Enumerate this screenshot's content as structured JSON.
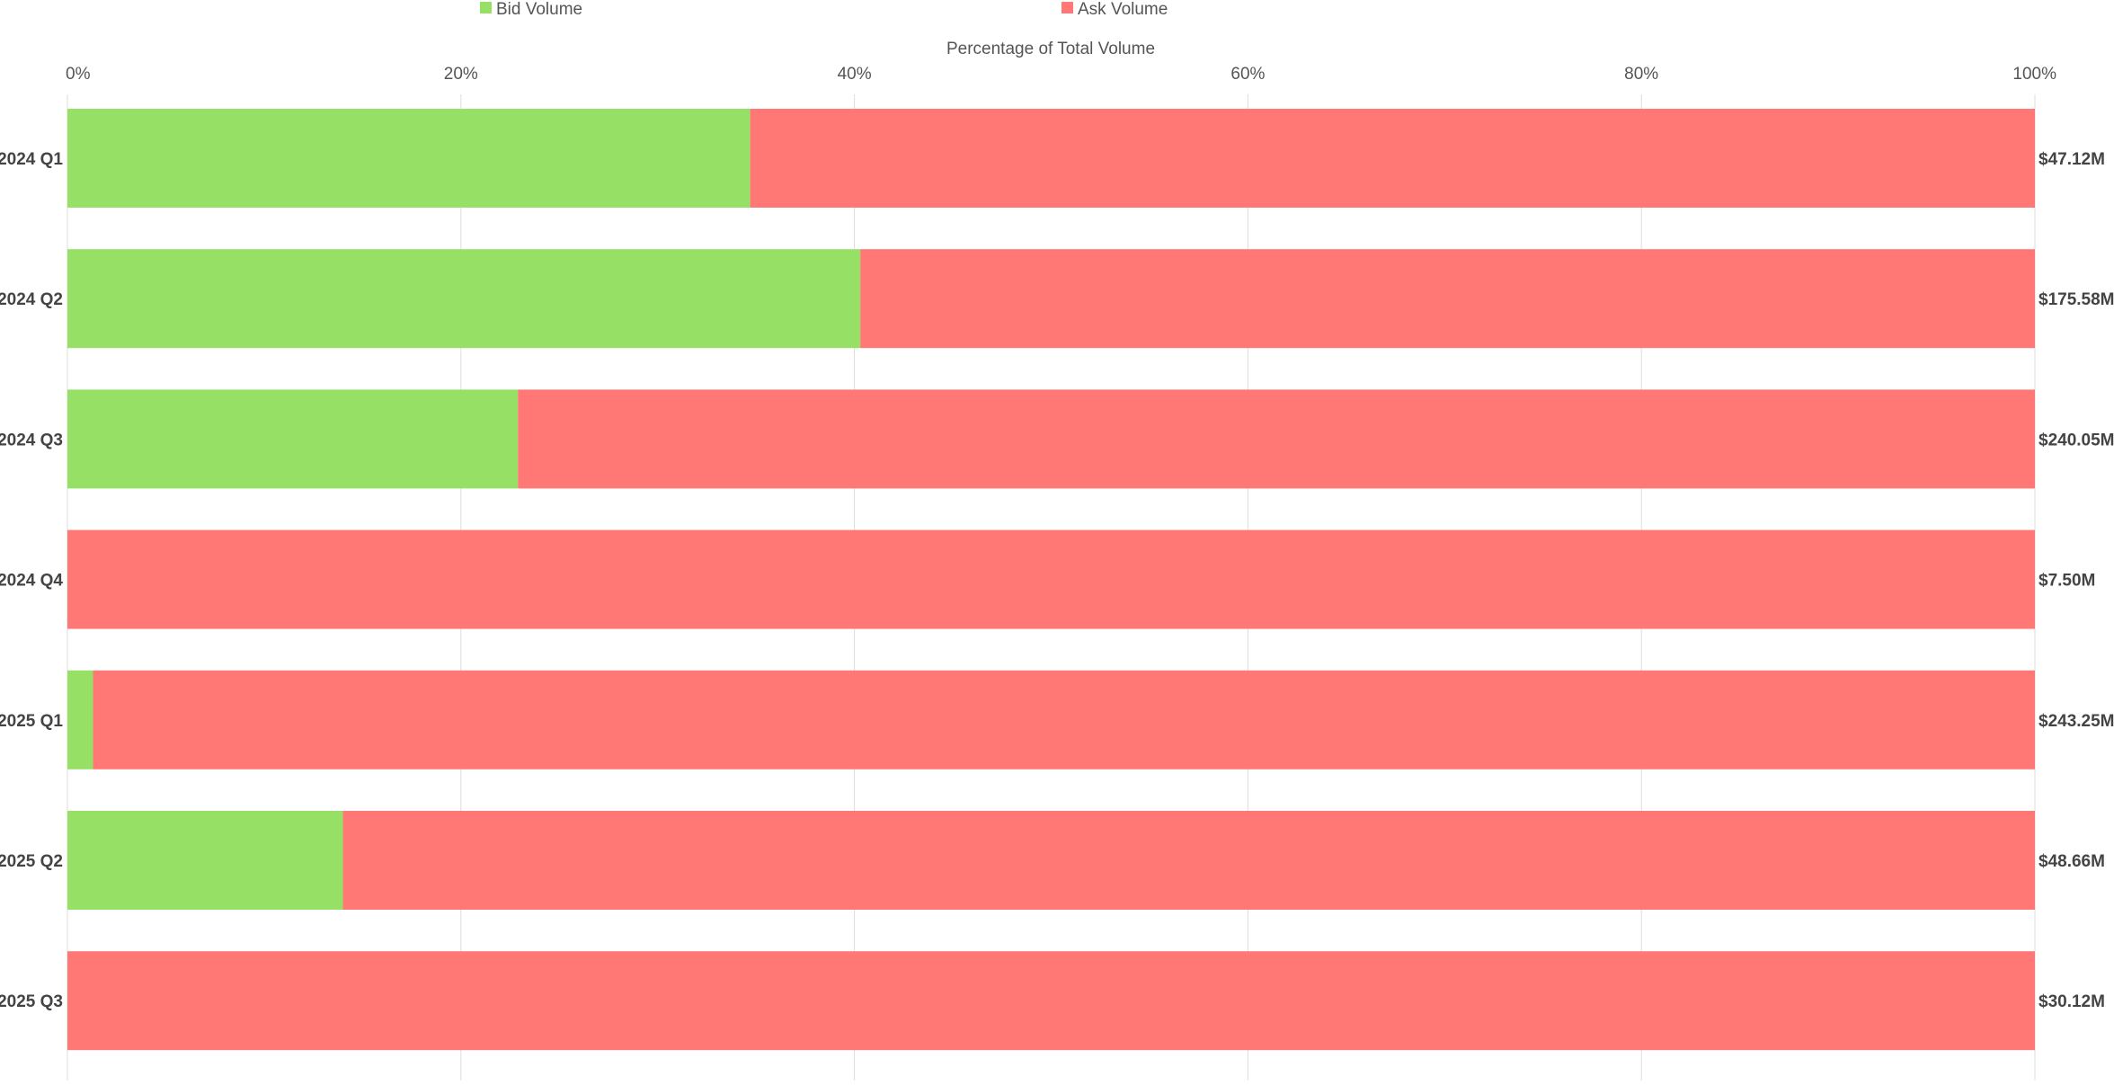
{
  "chart_data": {
    "type": "bar",
    "orientation": "horizontal",
    "stacked": true,
    "normalized": true,
    "title": "",
    "xlabel": "Percentage of Total Volume",
    "ylabel": "",
    "xlim": [
      0,
      100
    ],
    "x_ticks": [
      0,
      20,
      40,
      60,
      80,
      100
    ],
    "x_tick_labels": [
      "0%",
      "20%",
      "40%",
      "60%",
      "80%",
      "100%"
    ],
    "grid": true,
    "legend_position": "top",
    "categories": [
      "2024 Q1",
      "2024 Q2",
      "2024 Q3",
      "2024 Q4",
      "2025 Q1",
      "2025 Q2",
      "2025 Q3"
    ],
    "series": [
      {
        "name": "Bid Volume",
        "color": "#97e066",
        "values": [
          34.7,
          40.3,
          22.9,
          0.0,
          1.3,
          14.0,
          0.0
        ]
      },
      {
        "name": "Ask Volume",
        "color": "#ff7875",
        "values": [
          65.3,
          59.7,
          77.1,
          100.0,
          98.7,
          86.0,
          100.0
        ]
      }
    ],
    "totals": [
      "$47.12M",
      "$175.58M",
      "$240.05M",
      "$7.50M",
      "$243.25M",
      "$48.66M",
      "$30.12M"
    ]
  }
}
